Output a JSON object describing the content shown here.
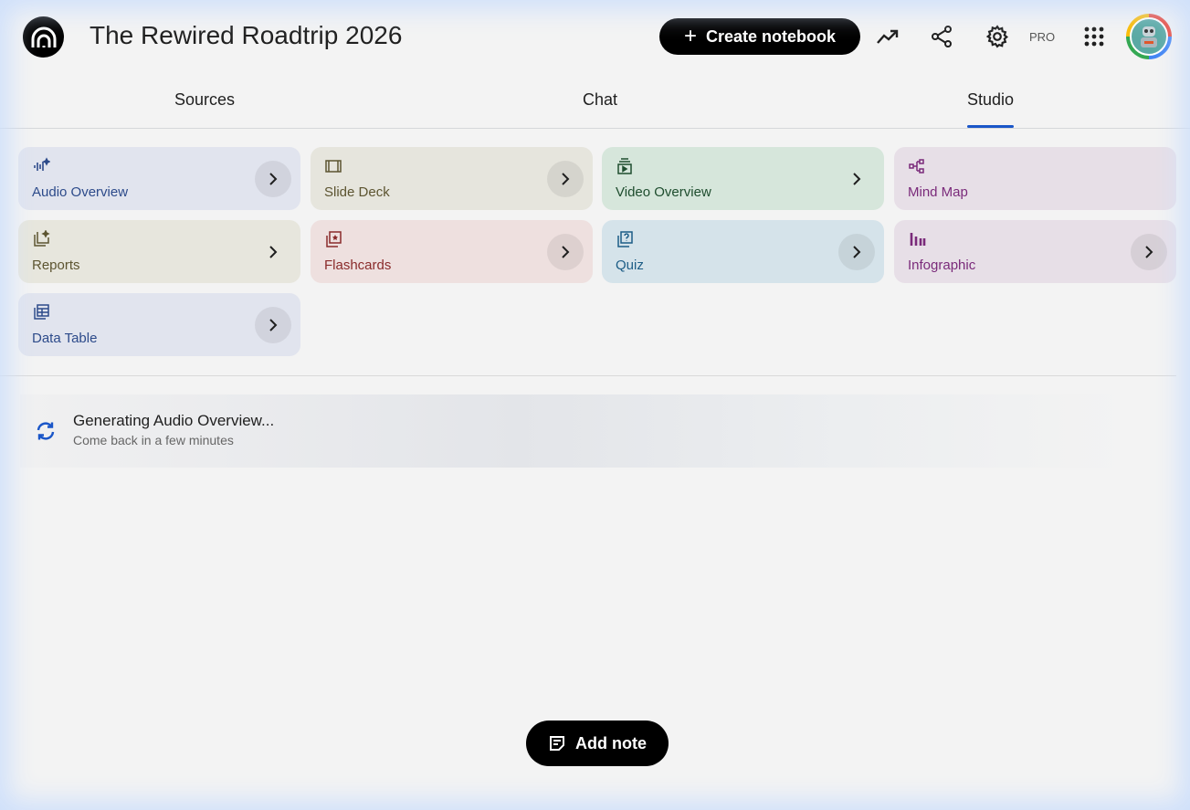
{
  "header": {
    "title": "The Rewired Roadtrip 2026",
    "create_label": "Create notebook",
    "pro_label": "PRO"
  },
  "tabs": [
    {
      "label": "Sources"
    },
    {
      "label": "Chat"
    },
    {
      "label": "Studio",
      "active": true
    }
  ],
  "studio": {
    "cards": [
      {
        "label": "Audio Overview",
        "icon": "audio-waveform-sparkle-icon",
        "bg": "#e1e4ee",
        "color": "#2c4a8a"
      },
      {
        "label": "Slide Deck",
        "icon": "slides-icon",
        "bg": "#e6e5dd",
        "color": "#5c5430"
      },
      {
        "label": "Video Overview",
        "icon": "video-icon",
        "bg": "#d6e6db",
        "color": "#1e4d2e"
      },
      {
        "label": "Mind Map",
        "icon": "mind-map-icon",
        "bg": "#e7dfe7",
        "color": "#7a2a7a"
      },
      {
        "label": "Reports",
        "icon": "reports-icon",
        "bg": "#e7e6dd",
        "color": "#5c5430"
      },
      {
        "label": "Flashcards",
        "icon": "flashcards-icon",
        "bg": "#eee0df",
        "color": "#8a2b2b"
      },
      {
        "label": "Quiz",
        "icon": "quiz-icon",
        "bg": "#d5e3ea",
        "color": "#1c5d86"
      },
      {
        "label": "Infographic",
        "icon": "infographic-icon",
        "bg": "#e7dfe7",
        "color": "#7a2a7a"
      },
      {
        "label": "Data Table",
        "icon": "data-table-icon",
        "bg": "#e1e4ee",
        "color": "#2c4a8a"
      }
    ]
  },
  "generating": {
    "title": "Generating Audio Overview...",
    "subtitle": "Come back in a few minutes"
  },
  "add_note_label": "Add note"
}
